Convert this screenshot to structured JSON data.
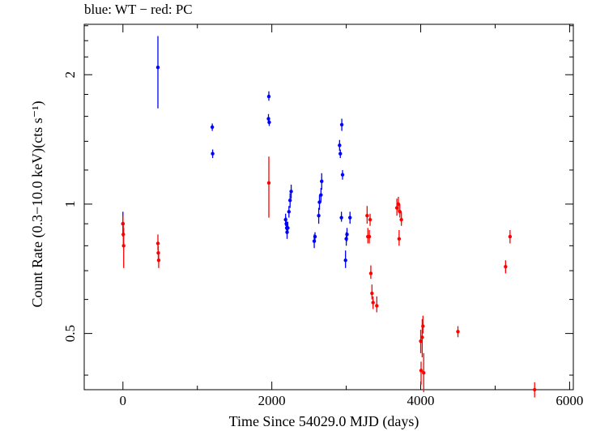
{
  "chart_data": {
    "type": "scatter",
    "title": "blue: WT − red: PC",
    "xlabel": "Time Since 54029.0 MJD (days)",
    "ylabel": "Count Rate (0.3−10.0 keV)(cts s⁻¹)",
    "x_scale": "linear",
    "y_scale": "log",
    "xlim": [
      -520,
      6050
    ],
    "ylim": [
      0.37,
      2.62
    ],
    "x_ticks": [
      0,
      2000,
      4000,
      6000
    ],
    "x_tick_labels": [
      "0",
      "2000",
      "4000",
      "6000"
    ],
    "y_ticks": [
      0.5,
      1,
      2
    ],
    "y_tick_labels": [
      "0.5",
      "1",
      "2"
    ],
    "grid": false,
    "legend": "none",
    "series": [
      {
        "name": "WT",
        "color": "#0000ff",
        "points": [
          {
            "x": 0,
            "y": 0.9,
            "ylo": 0.84,
            "yhi": 0.96
          },
          {
            "x": 470,
            "y": 2.08,
            "ylo": 1.67,
            "yhi": 2.46
          },
          {
            "x": 1200,
            "y": 1.51,
            "ylo": 1.48,
            "yhi": 1.54
          },
          {
            "x": 1205,
            "y": 1.31,
            "ylo": 1.28,
            "yhi": 1.34
          },
          {
            "x": 1960,
            "y": 1.78,
            "ylo": 1.74,
            "yhi": 1.83
          },
          {
            "x": 1955,
            "y": 1.58,
            "ylo": 1.54,
            "yhi": 1.62
          },
          {
            "x": 1965,
            "y": 1.55,
            "ylo": 1.52,
            "yhi": 1.58
          },
          {
            "x": 2185,
            "y": 0.92,
            "ylo": 0.89,
            "yhi": 0.95
          },
          {
            "x": 2195,
            "y": 0.9,
            "ylo": 0.87,
            "yhi": 0.93
          },
          {
            "x": 2200,
            "y": 0.88,
            "ylo": 0.86,
            "yhi": 0.91
          },
          {
            "x": 2205,
            "y": 0.86,
            "ylo": 0.83,
            "yhi": 0.89
          },
          {
            "x": 2215,
            "y": 0.88,
            "ylo": 0.86,
            "yhi": 0.91
          },
          {
            "x": 2230,
            "y": 0.96,
            "ylo": 0.93,
            "yhi": 0.99
          },
          {
            "x": 2245,
            "y": 1.02,
            "ylo": 0.98,
            "yhi": 1.06
          },
          {
            "x": 2260,
            "y": 1.07,
            "ylo": 1.03,
            "yhi": 1.11
          },
          {
            "x": 2570,
            "y": 0.82,
            "ylo": 0.79,
            "yhi": 0.85
          },
          {
            "x": 2580,
            "y": 0.84,
            "ylo": 0.82,
            "yhi": 0.86
          },
          {
            "x": 2630,
            "y": 0.94,
            "ylo": 0.9,
            "yhi": 0.98
          },
          {
            "x": 2640,
            "y": 1.01,
            "ylo": 0.97,
            "yhi": 1.05
          },
          {
            "x": 2660,
            "y": 1.05,
            "ylo": 1.01,
            "yhi": 1.09
          },
          {
            "x": 2670,
            "y": 1.13,
            "ylo": 1.08,
            "yhi": 1.18
          },
          {
            "x": 2910,
            "y": 1.37,
            "ylo": 1.33,
            "yhi": 1.41
          },
          {
            "x": 2920,
            "y": 1.31,
            "ylo": 1.28,
            "yhi": 1.34
          },
          {
            "x": 2935,
            "y": 0.93,
            "ylo": 0.91,
            "yhi": 0.96
          },
          {
            "x": 2940,
            "y": 1.53,
            "ylo": 1.48,
            "yhi": 1.58
          },
          {
            "x": 2950,
            "y": 1.17,
            "ylo": 1.14,
            "yhi": 1.2
          },
          {
            "x": 2990,
            "y": 0.74,
            "ylo": 0.71,
            "yhi": 0.78
          },
          {
            "x": 3000,
            "y": 0.83,
            "ylo": 0.8,
            "yhi": 0.86
          },
          {
            "x": 3010,
            "y": 0.85,
            "ylo": 0.82,
            "yhi": 0.88
          },
          {
            "x": 3050,
            "y": 0.93,
            "ylo": 0.9,
            "yhi": 0.96
          }
        ]
      },
      {
        "name": "PC",
        "color": "#ff0000",
        "points": [
          {
            "x": 0,
            "y": 0.9,
            "ylo": 0.86,
            "yhi": 0.94
          },
          {
            "x": 5,
            "y": 0.85,
            "ylo": 0.8,
            "yhi": 0.9
          },
          {
            "x": 10,
            "y": 0.8,
            "ylo": 0.71,
            "yhi": 0.88
          },
          {
            "x": 470,
            "y": 0.81,
            "ylo": 0.78,
            "yhi": 0.85
          },
          {
            "x": 475,
            "y": 0.77,
            "ylo": 0.74,
            "yhi": 0.8
          },
          {
            "x": 480,
            "y": 0.74,
            "ylo": 0.71,
            "yhi": 0.77
          },
          {
            "x": 1960,
            "y": 1.12,
            "ylo": 0.93,
            "yhi": 1.29
          },
          {
            "x": 3280,
            "y": 0.94,
            "ylo": 0.9,
            "yhi": 0.99
          },
          {
            "x": 3290,
            "y": 0.84,
            "ylo": 0.81,
            "yhi": 0.88
          },
          {
            "x": 3310,
            "y": 0.84,
            "ylo": 0.81,
            "yhi": 0.87
          },
          {
            "x": 3320,
            "y": 0.92,
            "ylo": 0.89,
            "yhi": 0.95
          },
          {
            "x": 3330,
            "y": 0.69,
            "ylo": 0.67,
            "yhi": 0.72
          },
          {
            "x": 3345,
            "y": 0.62,
            "ylo": 0.6,
            "yhi": 0.65
          },
          {
            "x": 3360,
            "y": 0.59,
            "ylo": 0.57,
            "yhi": 0.61
          },
          {
            "x": 3410,
            "y": 0.58,
            "ylo": 0.56,
            "yhi": 0.61
          },
          {
            "x": 3680,
            "y": 0.98,
            "ylo": 0.94,
            "yhi": 1.03
          },
          {
            "x": 3700,
            "y": 1.0,
            "ylo": 0.96,
            "yhi": 1.04
          },
          {
            "x": 3710,
            "y": 0.83,
            "ylo": 0.8,
            "yhi": 0.87
          },
          {
            "x": 3720,
            "y": 0.96,
            "ylo": 0.93,
            "yhi": 1.0
          },
          {
            "x": 3740,
            "y": 0.92,
            "ylo": 0.89,
            "yhi": 0.96
          },
          {
            "x": 4000,
            "y": 0.48,
            "ylo": 0.45,
            "yhi": 0.51
          },
          {
            "x": 4005,
            "y": 0.41,
            "ylo": 0.38,
            "yhi": 0.43
          },
          {
            "x": 4020,
            "y": 0.49,
            "ylo": 0.44,
            "yhi": 0.54
          },
          {
            "x": 4030,
            "y": 0.52,
            "ylo": 0.5,
            "yhi": 0.55
          },
          {
            "x": 4040,
            "y": 0.405,
            "ylo": 0.365,
            "yhi": 0.45
          },
          {
            "x": 4500,
            "y": 0.505,
            "ylo": 0.49,
            "yhi": 0.52
          },
          {
            "x": 5140,
            "y": 0.715,
            "ylo": 0.69,
            "yhi": 0.74
          },
          {
            "x": 5200,
            "y": 0.84,
            "ylo": 0.81,
            "yhi": 0.87
          },
          {
            "x": 5530,
            "y": 0.37,
            "ylo": 0.355,
            "yhi": 0.385
          }
        ]
      }
    ]
  }
}
